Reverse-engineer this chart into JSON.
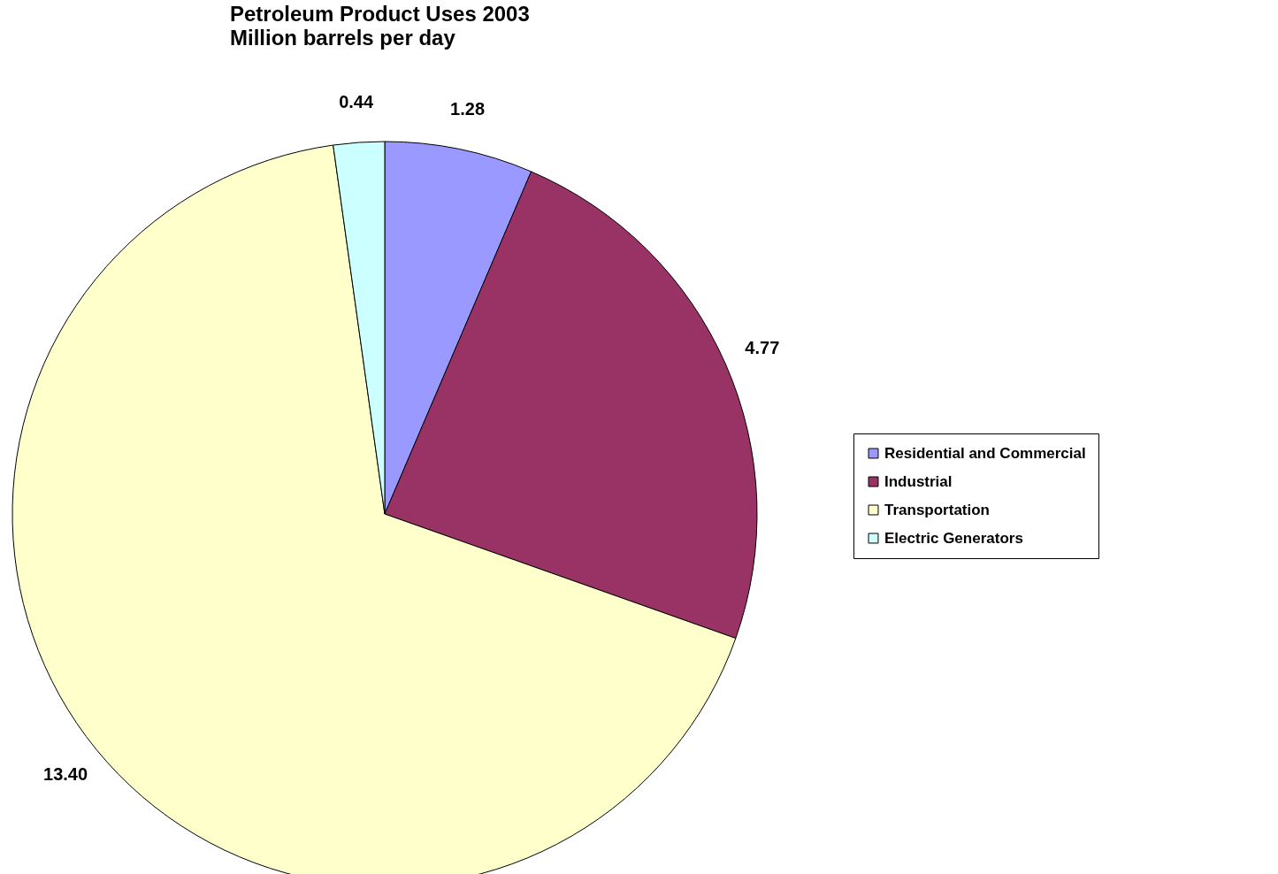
{
  "chart_data": {
    "type": "pie",
    "title": "Petroleum Product Uses 2003",
    "subtitle": "Million barrels per day",
    "categories": [
      "Residential and Commercial",
      "Industrial",
      "Transportation",
      "Electric Generators"
    ],
    "values": [
      1.28,
      4.77,
      13.4,
      0.44
    ],
    "value_labels": [
      "1.28",
      "4.77",
      "13.40",
      "0.44"
    ],
    "colors": [
      "#9999ff",
      "#993366",
      "#ffffcc",
      "#ccffff"
    ],
    "legend": "right"
  }
}
